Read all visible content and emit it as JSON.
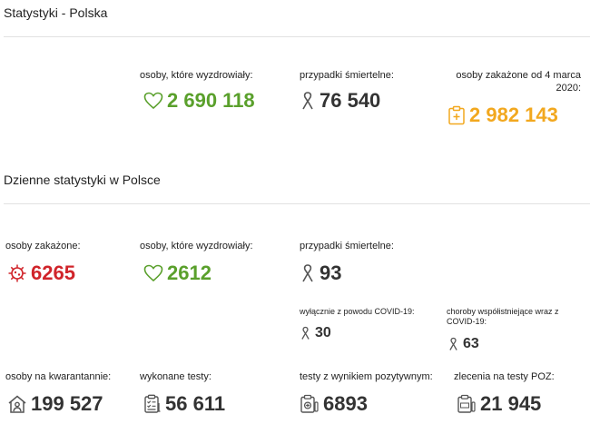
{
  "colors": {
    "green": "#5aa02c",
    "dark": "#333333",
    "orange": "#f2a81f",
    "red": "#d0242a",
    "rule": "#e1e1e1"
  },
  "poland": {
    "title": "Statystyki - Polska",
    "recovered": {
      "label": "osoby, które wyzdrowiały:",
      "value": "2 690 118",
      "icon": "heart-icon"
    },
    "deaths": {
      "label": "przypadki śmiertelne:",
      "value": "76 540",
      "icon": "ribbon-icon"
    },
    "infected": {
      "label": "osoby zakażone od 4 marca 2020:",
      "value": "2 982 143",
      "icon": "medical-clipboard-icon"
    }
  },
  "daily": {
    "title": "Dzienne statystyki w Polsce",
    "infected": {
      "label": "osoby zakażone:",
      "value": "6265",
      "icon": "virus-icon"
    },
    "recovered": {
      "label": "osoby, które wyzdrowiały:",
      "value": "2612",
      "icon": "heart-icon"
    },
    "deaths": {
      "label": "przypadki śmiertelne:",
      "value": "93",
      "icon": "ribbon-icon"
    },
    "deaths_covid_only": {
      "label": "wyłącznie z powodu COVID-19:",
      "value": "30",
      "icon": "ribbon-icon"
    },
    "deaths_comorbid": {
      "label": "choroby współistniejące wraz z COVID-19:",
      "value": "63",
      "icon": "ribbon-icon"
    },
    "quarantine": {
      "label": "osoby na kwarantannie:",
      "value": "199 527",
      "icon": "house-person-icon"
    },
    "tests": {
      "label": "wykonane testy:",
      "value": "56 611",
      "icon": "checklist-icon"
    },
    "positive_tests": {
      "label": "testy z wynikiem pozytywnym:",
      "value": "6893",
      "icon": "positive-test-icon"
    },
    "poz_orders": {
      "label": "zlecenia na testy POZ:",
      "value": "21 945",
      "icon": "poz-clipboard-icon"
    }
  }
}
